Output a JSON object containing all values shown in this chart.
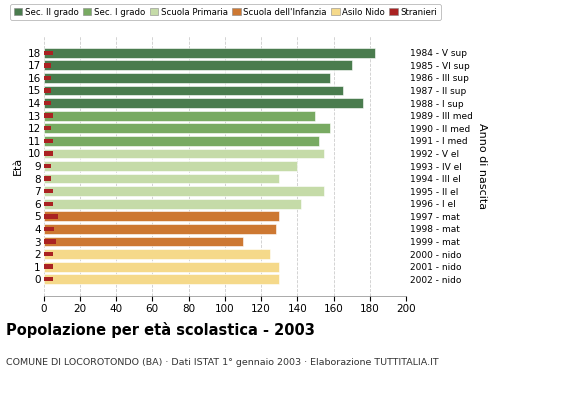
{
  "ages": [
    18,
    17,
    16,
    15,
    14,
    13,
    12,
    11,
    10,
    9,
    8,
    7,
    6,
    5,
    4,
    3,
    2,
    1,
    0
  ],
  "anno_nascita": [
    "1984 - V sup",
    "1985 - VI sup",
    "1986 - III sup",
    "1987 - II sup",
    "1988 - I sup",
    "1989 - III med",
    "1990 - II med",
    "1991 - I med",
    "1992 - V el",
    "1993 - IV el",
    "1994 - III el",
    "1995 - II el",
    "1996 - I el",
    "1997 - mat",
    "1998 - mat",
    "1999 - mat",
    "2000 - nido",
    "2001 - nido",
    "2002 - nido"
  ],
  "bar_values": [
    183,
    170,
    158,
    165,
    176,
    150,
    158,
    152,
    155,
    140,
    130,
    155,
    142,
    130,
    128,
    110,
    125,
    130,
    130
  ],
  "stranieri": [
    5,
    4,
    4,
    4,
    4,
    5,
    4,
    5,
    5,
    4,
    4,
    5,
    5,
    8,
    6,
    7,
    5,
    5,
    5
  ],
  "bar_colors": [
    "#4a7c4e",
    "#4a7c4e",
    "#4a7c4e",
    "#4a7c4e",
    "#4a7c4e",
    "#78aa62",
    "#78aa62",
    "#78aa62",
    "#c5dba8",
    "#c5dba8",
    "#c5dba8",
    "#c5dba8",
    "#c5dba8",
    "#cd7832",
    "#cd7832",
    "#cd7832",
    "#f5d98a",
    "#f5d98a",
    "#f5d98a"
  ],
  "legend_labels": [
    "Sec. II grado",
    "Sec. I grado",
    "Scuola Primaria",
    "Scuola dell'Infanzia",
    "Asilo Nido",
    "Stranieri"
  ],
  "legend_colors": [
    "#4a7c4e",
    "#78aa62",
    "#c5dba8",
    "#cd7832",
    "#f5d98a",
    "#aa2222"
  ],
  "stranieri_color": "#aa2222",
  "xlim": [
    0,
    200
  ],
  "xticks": [
    0,
    20,
    40,
    60,
    80,
    100,
    120,
    140,
    160,
    180,
    200
  ],
  "title": "Popolazione per età scolastica - 2003",
  "subtitle": "COMUNE DI LOCOROTONDO (BA) · Dati ISTAT 1° gennaio 2003 · Elaborazione TUTTITALIA.IT",
  "ylabel_left": "Età",
  "ylabel_right": "Anno di nascita",
  "bg_color": "#ffffff",
  "bar_height": 0.78,
  "grid_color": "#cccccc"
}
